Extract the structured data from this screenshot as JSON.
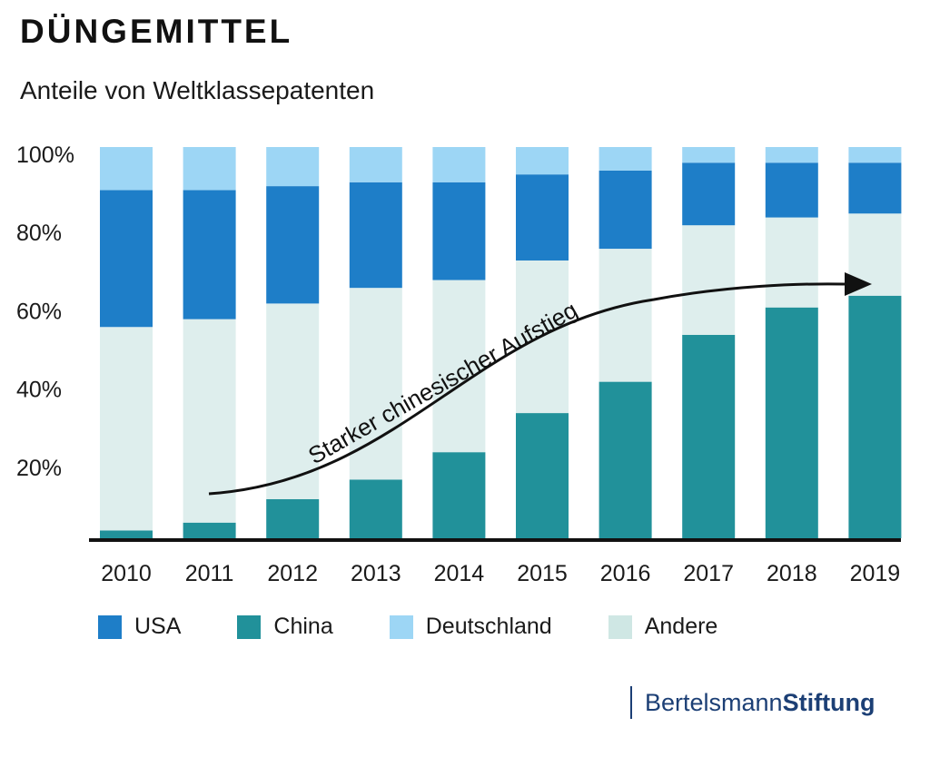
{
  "header": {
    "title": "DÜNGEMITTEL",
    "subtitle": "Anteile von Weltklassepatenten"
  },
  "chart_data": {
    "type": "bar",
    "stacked": true,
    "categories": [
      "2010",
      "2011",
      "2012",
      "2013",
      "2014",
      "2015",
      "2016",
      "2017",
      "2018",
      "2019"
    ],
    "series": [
      {
        "name": "China",
        "color": "#21919a",
        "values": [
          2,
          4,
          10,
          15,
          22,
          32,
          40,
          52,
          59,
          62
        ]
      },
      {
        "name": "Andere",
        "color": "#deeeed",
        "values": [
          52,
          52,
          50,
          49,
          44,
          39,
          34,
          28,
          23,
          21
        ]
      },
      {
        "name": "USA",
        "color": "#1e7ec8",
        "values": [
          35,
          33,
          30,
          27,
          25,
          22,
          20,
          16,
          14,
          13
        ]
      },
      {
        "name": "Deutschland",
        "color": "#9dd6f5",
        "values": [
          11,
          11,
          10,
          9,
          9,
          7,
          6,
          4,
          4,
          4
        ]
      }
    ],
    "legend_order": [
      "USA",
      "China",
      "Deutschland",
      "Andere"
    ],
    "yticks": [
      "20%",
      "40%",
      "60%",
      "80%",
      "100%"
    ],
    "ytick_values": [
      20,
      40,
      60,
      80,
      100
    ],
    "ylim": [
      0,
      100
    ],
    "annotation": "Starker chinesischer Aufstieg"
  },
  "brand": {
    "name": "Bertelsmann",
    "name_strong": "Stiftung"
  }
}
